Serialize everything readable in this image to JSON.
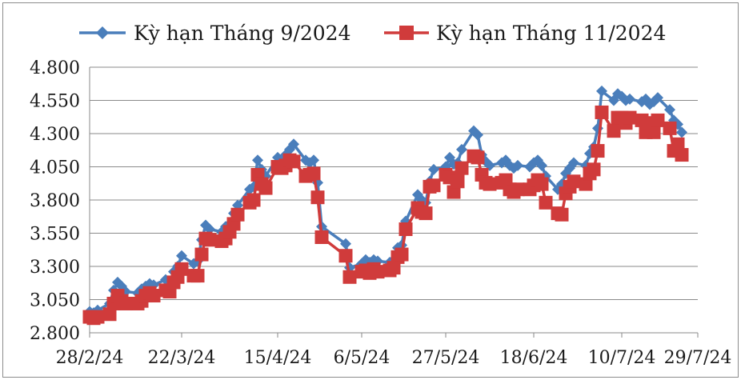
{
  "chart_data": {
    "type": "line",
    "title": "",
    "xlabel": "",
    "ylabel": "",
    "ylim": [
      2800,
      4800
    ],
    "yticks": [
      2800,
      3050,
      3300,
      3550,
      3800,
      4050,
      4300,
      4550,
      4800
    ],
    "ytick_labels": [
      "2.800",
      "3.050",
      "3.300",
      "3.550",
      "3.800",
      "4.050",
      "4.300",
      "4.550",
      "4.800"
    ],
    "xtick_labels": [
      "28/2/24",
      "22/3/24",
      "15/4/24",
      "6/5/24",
      "27/5/24",
      "18/6/24",
      "10/7/24",
      "29/7/24"
    ],
    "xtick_dates": [
      "2024-02-28",
      "2024-03-22",
      "2024-04-15",
      "2024-05-06",
      "2024-05-27",
      "2024-06-18",
      "2024-07-10",
      "2024-07-29"
    ],
    "grid": {
      "horizontal": true,
      "vertical": false
    },
    "legend": "top",
    "series": [
      {
        "name": "Kỳ hạn Tháng 9/2024",
        "color": "#4a7ebb",
        "marker": "diamond",
        "values": [
          [
            "2024-02-28",
            2960
          ],
          [
            "2024-02-29",
            2950
          ],
          [
            "2024-03-01",
            2970
          ],
          [
            "2024-03-04",
            3020
          ],
          [
            "2024-03-05",
            3120
          ],
          [
            "2024-03-06",
            3180
          ],
          [
            "2024-03-07",
            3150
          ],
          [
            "2024-03-08",
            3110
          ],
          [
            "2024-03-11",
            3100
          ],
          [
            "2024-03-12",
            3130
          ],
          [
            "2024-03-13",
            3150
          ],
          [
            "2024-03-14",
            3170
          ],
          [
            "2024-03-15",
            3160
          ],
          [
            "2024-03-18",
            3200
          ],
          [
            "2024-03-19",
            3180
          ],
          [
            "2024-03-20",
            3260
          ],
          [
            "2024-03-21",
            3300
          ],
          [
            "2024-03-22",
            3380
          ],
          [
            "2024-03-25",
            3320
          ],
          [
            "2024-03-26",
            3340
          ],
          [
            "2024-03-27",
            3500
          ],
          [
            "2024-03-28",
            3610
          ],
          [
            "2024-03-29",
            3580
          ],
          [
            "2024-04-01",
            3560
          ],
          [
            "2024-04-02",
            3600
          ],
          [
            "2024-04-03",
            3620
          ],
          [
            "2024-04-04",
            3700
          ],
          [
            "2024-04-05",
            3760
          ],
          [
            "2024-04-08",
            3880
          ],
          [
            "2024-04-09",
            3900
          ],
          [
            "2024-04-10",
            4100
          ],
          [
            "2024-04-11",
            4030
          ],
          [
            "2024-04-12",
            3980
          ],
          [
            "2024-04-15",
            4120
          ],
          [
            "2024-04-16",
            4100
          ],
          [
            "2024-04-17",
            4140
          ],
          [
            "2024-04-18",
            4180
          ],
          [
            "2024-04-19",
            4220
          ],
          [
            "2024-04-22",
            4100
          ],
          [
            "2024-04-23",
            4080
          ],
          [
            "2024-04-24",
            4100
          ],
          [
            "2024-04-25",
            3930
          ],
          [
            "2024-04-26",
            3600
          ],
          [
            "2024-05-02",
            3470
          ],
          [
            "2024-05-03",
            3290
          ],
          [
            "2024-05-06",
            3320
          ],
          [
            "2024-05-07",
            3350
          ],
          [
            "2024-05-08",
            3330
          ],
          [
            "2024-05-09",
            3350
          ],
          [
            "2024-05-10",
            3340
          ],
          [
            "2024-05-13",
            3330
          ],
          [
            "2024-05-14",
            3350
          ],
          [
            "2024-05-15",
            3440
          ],
          [
            "2024-05-16",
            3460
          ],
          [
            "2024-05-17",
            3640
          ],
          [
            "2024-05-20",
            3840
          ],
          [
            "2024-05-21",
            3800
          ],
          [
            "2024-05-22",
            3780
          ],
          [
            "2024-05-23",
            3940
          ],
          [
            "2024-05-24",
            4030
          ],
          [
            "2024-05-27",
            4050
          ],
          [
            "2024-05-28",
            4120
          ],
          [
            "2024-05-29",
            4070
          ],
          [
            "2024-05-30",
            4080
          ],
          [
            "2024-05-31",
            4180
          ],
          [
            "2024-06-03",
            4320
          ],
          [
            "2024-06-04",
            4290
          ],
          [
            "2024-06-05",
            4140
          ],
          [
            "2024-06-06",
            4090
          ],
          [
            "2024-06-07",
            4060
          ],
          [
            "2024-06-10",
            4080
          ],
          [
            "2024-06-11",
            4100
          ],
          [
            "2024-06-12",
            4060
          ],
          [
            "2024-06-13",
            4040
          ],
          [
            "2024-06-14",
            4060
          ],
          [
            "2024-06-17",
            4050
          ],
          [
            "2024-06-18",
            4080
          ],
          [
            "2024-06-19",
            4100
          ],
          [
            "2024-06-20",
            4060
          ],
          [
            "2024-06-21",
            3980
          ],
          [
            "2024-06-24",
            3880
          ],
          [
            "2024-06-25",
            3920
          ],
          [
            "2024-06-26",
            4000
          ],
          [
            "2024-06-27",
            4040
          ],
          [
            "2024-06-28",
            4080
          ],
          [
            "2024-07-01",
            4060
          ],
          [
            "2024-07-02",
            4150
          ],
          [
            "2024-07-03",
            4200
          ],
          [
            "2024-07-04",
            4340
          ],
          [
            "2024-07-05",
            4620
          ],
          [
            "2024-07-08",
            4550
          ],
          [
            "2024-07-09",
            4600
          ],
          [
            "2024-07-10",
            4580
          ],
          [
            "2024-07-11",
            4550
          ],
          [
            "2024-07-12",
            4560
          ],
          [
            "2024-07-15",
            4540
          ],
          [
            "2024-07-16",
            4560
          ],
          [
            "2024-07-17",
            4520
          ],
          [
            "2024-07-18",
            4540
          ],
          [
            "2024-07-19",
            4570
          ],
          [
            "2024-07-22",
            4480
          ],
          [
            "2024-07-23",
            4400
          ],
          [
            "2024-07-24",
            4370
          ],
          [
            "2024-07-25",
            4310
          ]
        ]
      },
      {
        "name": "Kỳ hạn Tháng 11/2024",
        "color": "#d03b3b",
        "marker": "square",
        "values": [
          [
            "2024-02-28",
            2920
          ],
          [
            "2024-02-29",
            2910
          ],
          [
            "2024-03-01",
            2920
          ],
          [
            "2024-03-04",
            2940
          ],
          [
            "2024-03-05",
            3020
          ],
          [
            "2024-03-06",
            3080
          ],
          [
            "2024-03-07",
            3040
          ],
          [
            "2024-03-08",
            3020
          ],
          [
            "2024-03-11",
            3020
          ],
          [
            "2024-03-12",
            3040
          ],
          [
            "2024-03-13",
            3080
          ],
          [
            "2024-03-14",
            3100
          ],
          [
            "2024-03-15",
            3080
          ],
          [
            "2024-03-18",
            3120
          ],
          [
            "2024-03-19",
            3110
          ],
          [
            "2024-03-20",
            3180
          ],
          [
            "2024-03-21",
            3220
          ],
          [
            "2024-03-22",
            3280
          ],
          [
            "2024-03-25",
            3230
          ],
          [
            "2024-03-26",
            3230
          ],
          [
            "2024-03-27",
            3390
          ],
          [
            "2024-03-28",
            3510
          ],
          [
            "2024-03-29",
            3500
          ],
          [
            "2024-04-01",
            3490
          ],
          [
            "2024-04-02",
            3510
          ],
          [
            "2024-04-03",
            3560
          ],
          [
            "2024-04-04",
            3620
          ],
          [
            "2024-04-05",
            3690
          ],
          [
            "2024-04-08",
            3780
          ],
          [
            "2024-04-09",
            3800
          ],
          [
            "2024-04-10",
            3990
          ],
          [
            "2024-04-11",
            3920
          ],
          [
            "2024-04-12",
            3890
          ],
          [
            "2024-04-15",
            4050
          ],
          [
            "2024-04-16",
            4040
          ],
          [
            "2024-04-17",
            4060
          ],
          [
            "2024-04-18",
            4100
          ],
          [
            "2024-04-19",
            4090
          ],
          [
            "2024-04-22",
            3980
          ],
          [
            "2024-04-23",
            3990
          ],
          [
            "2024-04-24",
            4000
          ],
          [
            "2024-04-25",
            3820
          ],
          [
            "2024-04-26",
            3520
          ],
          [
            "2024-05-02",
            3380
          ],
          [
            "2024-05-03",
            3220
          ],
          [
            "2024-05-06",
            3260
          ],
          [
            "2024-05-07",
            3270
          ],
          [
            "2024-05-08",
            3250
          ],
          [
            "2024-05-09",
            3280
          ],
          [
            "2024-05-10",
            3260
          ],
          [
            "2024-05-13",
            3270
          ],
          [
            "2024-05-14",
            3290
          ],
          [
            "2024-05-15",
            3370
          ],
          [
            "2024-05-16",
            3390
          ],
          [
            "2024-05-17",
            3580
          ],
          [
            "2024-05-20",
            3740
          ],
          [
            "2024-05-21",
            3710
          ],
          [
            "2024-05-22",
            3700
          ],
          [
            "2024-05-23",
            3900
          ],
          [
            "2024-05-24",
            3910
          ],
          [
            "2024-05-27",
            3990
          ],
          [
            "2024-05-28",
            3970
          ],
          [
            "2024-05-29",
            3860
          ],
          [
            "2024-05-30",
            3940
          ],
          [
            "2024-05-31",
            4040
          ],
          [
            "2024-06-03",
            4130
          ],
          [
            "2024-06-04",
            4120
          ],
          [
            "2024-06-05",
            3990
          ],
          [
            "2024-06-06",
            3930
          ],
          [
            "2024-06-07",
            3920
          ],
          [
            "2024-06-10",
            3930
          ],
          [
            "2024-06-11",
            3950
          ],
          [
            "2024-06-12",
            3880
          ],
          [
            "2024-06-13",
            3860
          ],
          [
            "2024-06-14",
            3880
          ],
          [
            "2024-06-17",
            3880
          ],
          [
            "2024-06-18",
            3910
          ],
          [
            "2024-06-19",
            3950
          ],
          [
            "2024-06-20",
            3920
          ],
          [
            "2024-06-21",
            3780
          ],
          [
            "2024-06-24",
            3700
          ],
          [
            "2024-06-25",
            3690
          ],
          [
            "2024-06-26",
            3850
          ],
          [
            "2024-06-27",
            3900
          ],
          [
            "2024-06-28",
            3940
          ],
          [
            "2024-07-01",
            3920
          ],
          [
            "2024-07-02",
            4000
          ],
          [
            "2024-07-03",
            4030
          ],
          [
            "2024-07-04",
            4170
          ],
          [
            "2024-07-05",
            4460
          ],
          [
            "2024-07-08",
            4320
          ],
          [
            "2024-07-09",
            4420
          ],
          [
            "2024-07-10",
            4420
          ],
          [
            "2024-07-11",
            4380
          ],
          [
            "2024-07-12",
            4420
          ],
          [
            "2024-07-15",
            4400
          ],
          [
            "2024-07-16",
            4310
          ],
          [
            "2024-07-17",
            4380
          ],
          [
            "2024-07-18",
            4310
          ],
          [
            "2024-07-19",
            4400
          ],
          [
            "2024-07-22",
            4340
          ],
          [
            "2024-07-23",
            4170
          ],
          [
            "2024-07-24",
            4220
          ],
          [
            "2024-07-25",
            4140
          ]
        ]
      }
    ]
  }
}
